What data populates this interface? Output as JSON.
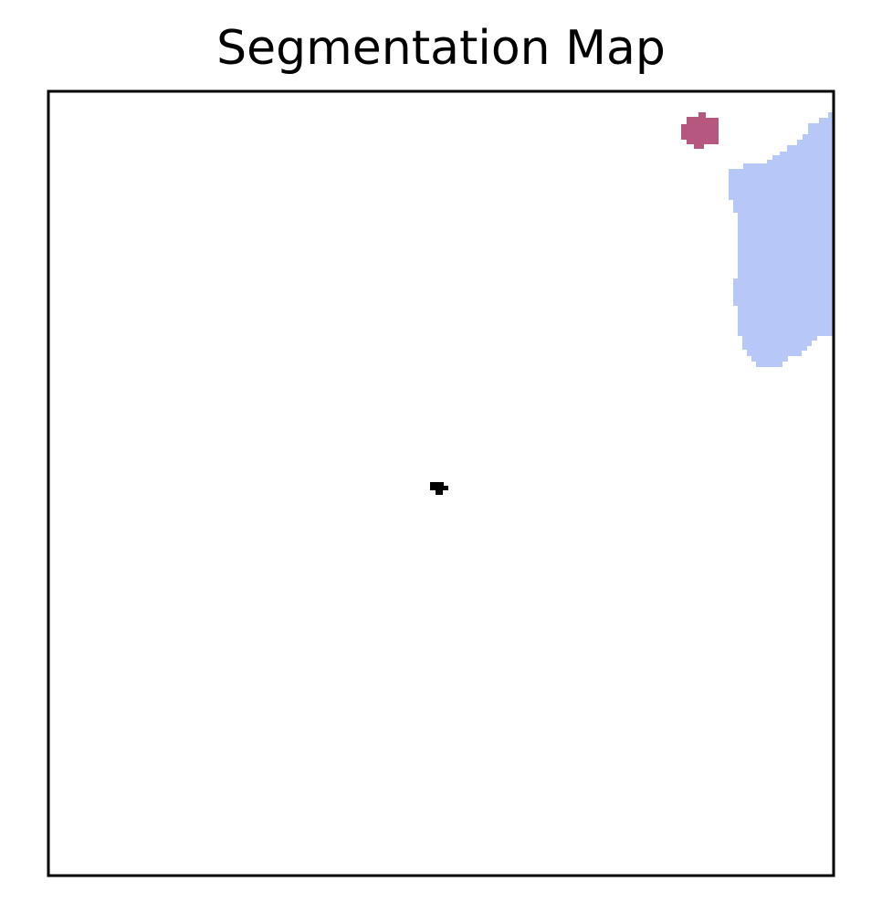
{
  "figure": {
    "title": "Segmentation Map"
  },
  "segments": [
    {
      "id": "region-light-blue",
      "color": "#b7c7f8"
    },
    {
      "id": "region-crimson",
      "color": "#b5577e"
    },
    {
      "id": "region-black",
      "color": "#000000"
    }
  ],
  "colors": {
    "background": "#ffffff",
    "frame": "#000000"
  }
}
